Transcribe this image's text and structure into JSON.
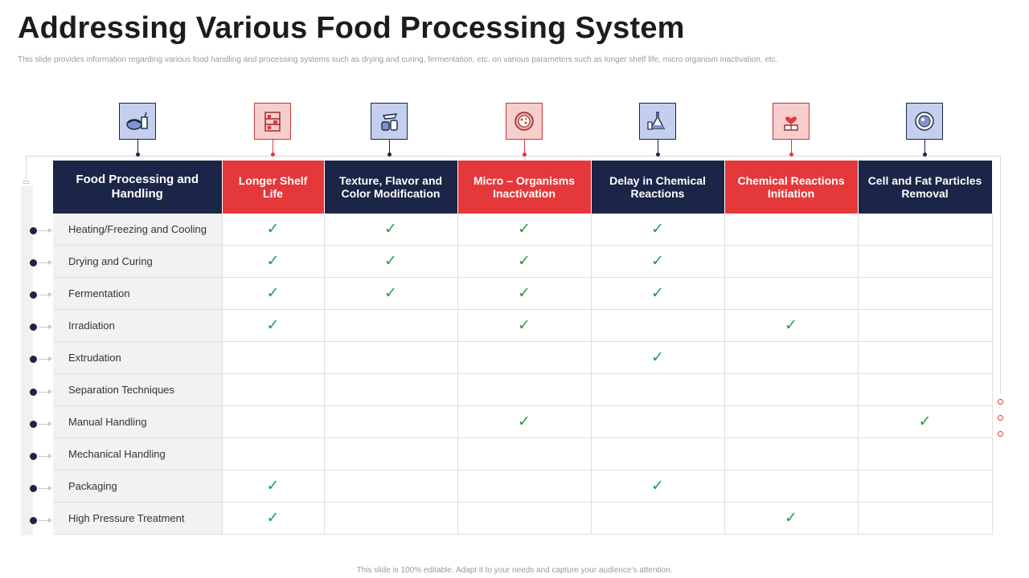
{
  "title": "Addressing Various Food Processing System",
  "subtitle": "This slide provides information regarding various food handling and processing systems such as drying and curing, fermentation, etc. on various parameters such as longer shelf life, micro organism inactivation, etc.",
  "footer": "This slide is 100% editable. Adapt it to your needs and capture your audience’s attention.",
  "colors": {
    "navy": "#1b2547",
    "red": "#e5383a",
    "check": "#1fa046"
  },
  "table": {
    "corner_header": "Food Processing and Handling",
    "columns": [
      {
        "label": "Longer Shelf Life",
        "color": "red",
        "icon": "food-drink-icon"
      },
      {
        "label": "Texture, Flavor and Color Modification",
        "color": "navy",
        "icon": "pantry-shelf-icon"
      },
      {
        "label": "Micro – Organisms Inactivation",
        "color": "red",
        "icon": "spice-jars-icon"
      },
      {
        "label": "Delay in Chemical Reactions",
        "color": "navy",
        "icon": "pizza-icon"
      },
      {
        "label": "Chemical Reactions Initiation",
        "color": "red",
        "icon": "chemistry-flask-icon"
      },
      {
        "label": "Cell and Fat Particles Removal",
        "color": "navy",
        "icon": "heart-scale-icon"
      }
    ],
    "header_icons": [
      "food-drink-icon",
      "pantry-shelf-icon",
      "spice-jars-icon",
      "pizza-icon",
      "chemistry-flask-icon",
      "heart-scale-icon",
      "plate-cell-icon"
    ],
    "check_mark": "✓",
    "rows": [
      {
        "label": "Heating/Freezing and Cooling",
        "checks": [
          1,
          1,
          1,
          1,
          0,
          0
        ]
      },
      {
        "label": "Drying and Curing",
        "checks": [
          1,
          1,
          1,
          1,
          0,
          0
        ]
      },
      {
        "label": "Fermentation",
        "checks": [
          1,
          1,
          1,
          1,
          0,
          0
        ]
      },
      {
        "label": "Irradiation",
        "checks": [
          1,
          0,
          1,
          0,
          1,
          0
        ]
      },
      {
        "label": "Extrudation",
        "checks": [
          0,
          0,
          0,
          1,
          0,
          0
        ]
      },
      {
        "label": "Separation Techniques",
        "checks": [
          0,
          0,
          0,
          0,
          0,
          0
        ]
      },
      {
        "label": "Manual Handling",
        "checks": [
          0,
          0,
          1,
          0,
          0,
          1
        ]
      },
      {
        "label": "Mechanical Handling",
        "checks": [
          0,
          0,
          0,
          0,
          0,
          0
        ]
      },
      {
        "label": "Packaging",
        "checks": [
          1,
          0,
          0,
          1,
          0,
          0
        ]
      },
      {
        "label": "High Pressure Treatment",
        "checks": [
          1,
          0,
          0,
          0,
          1,
          0
        ]
      }
    ]
  }
}
